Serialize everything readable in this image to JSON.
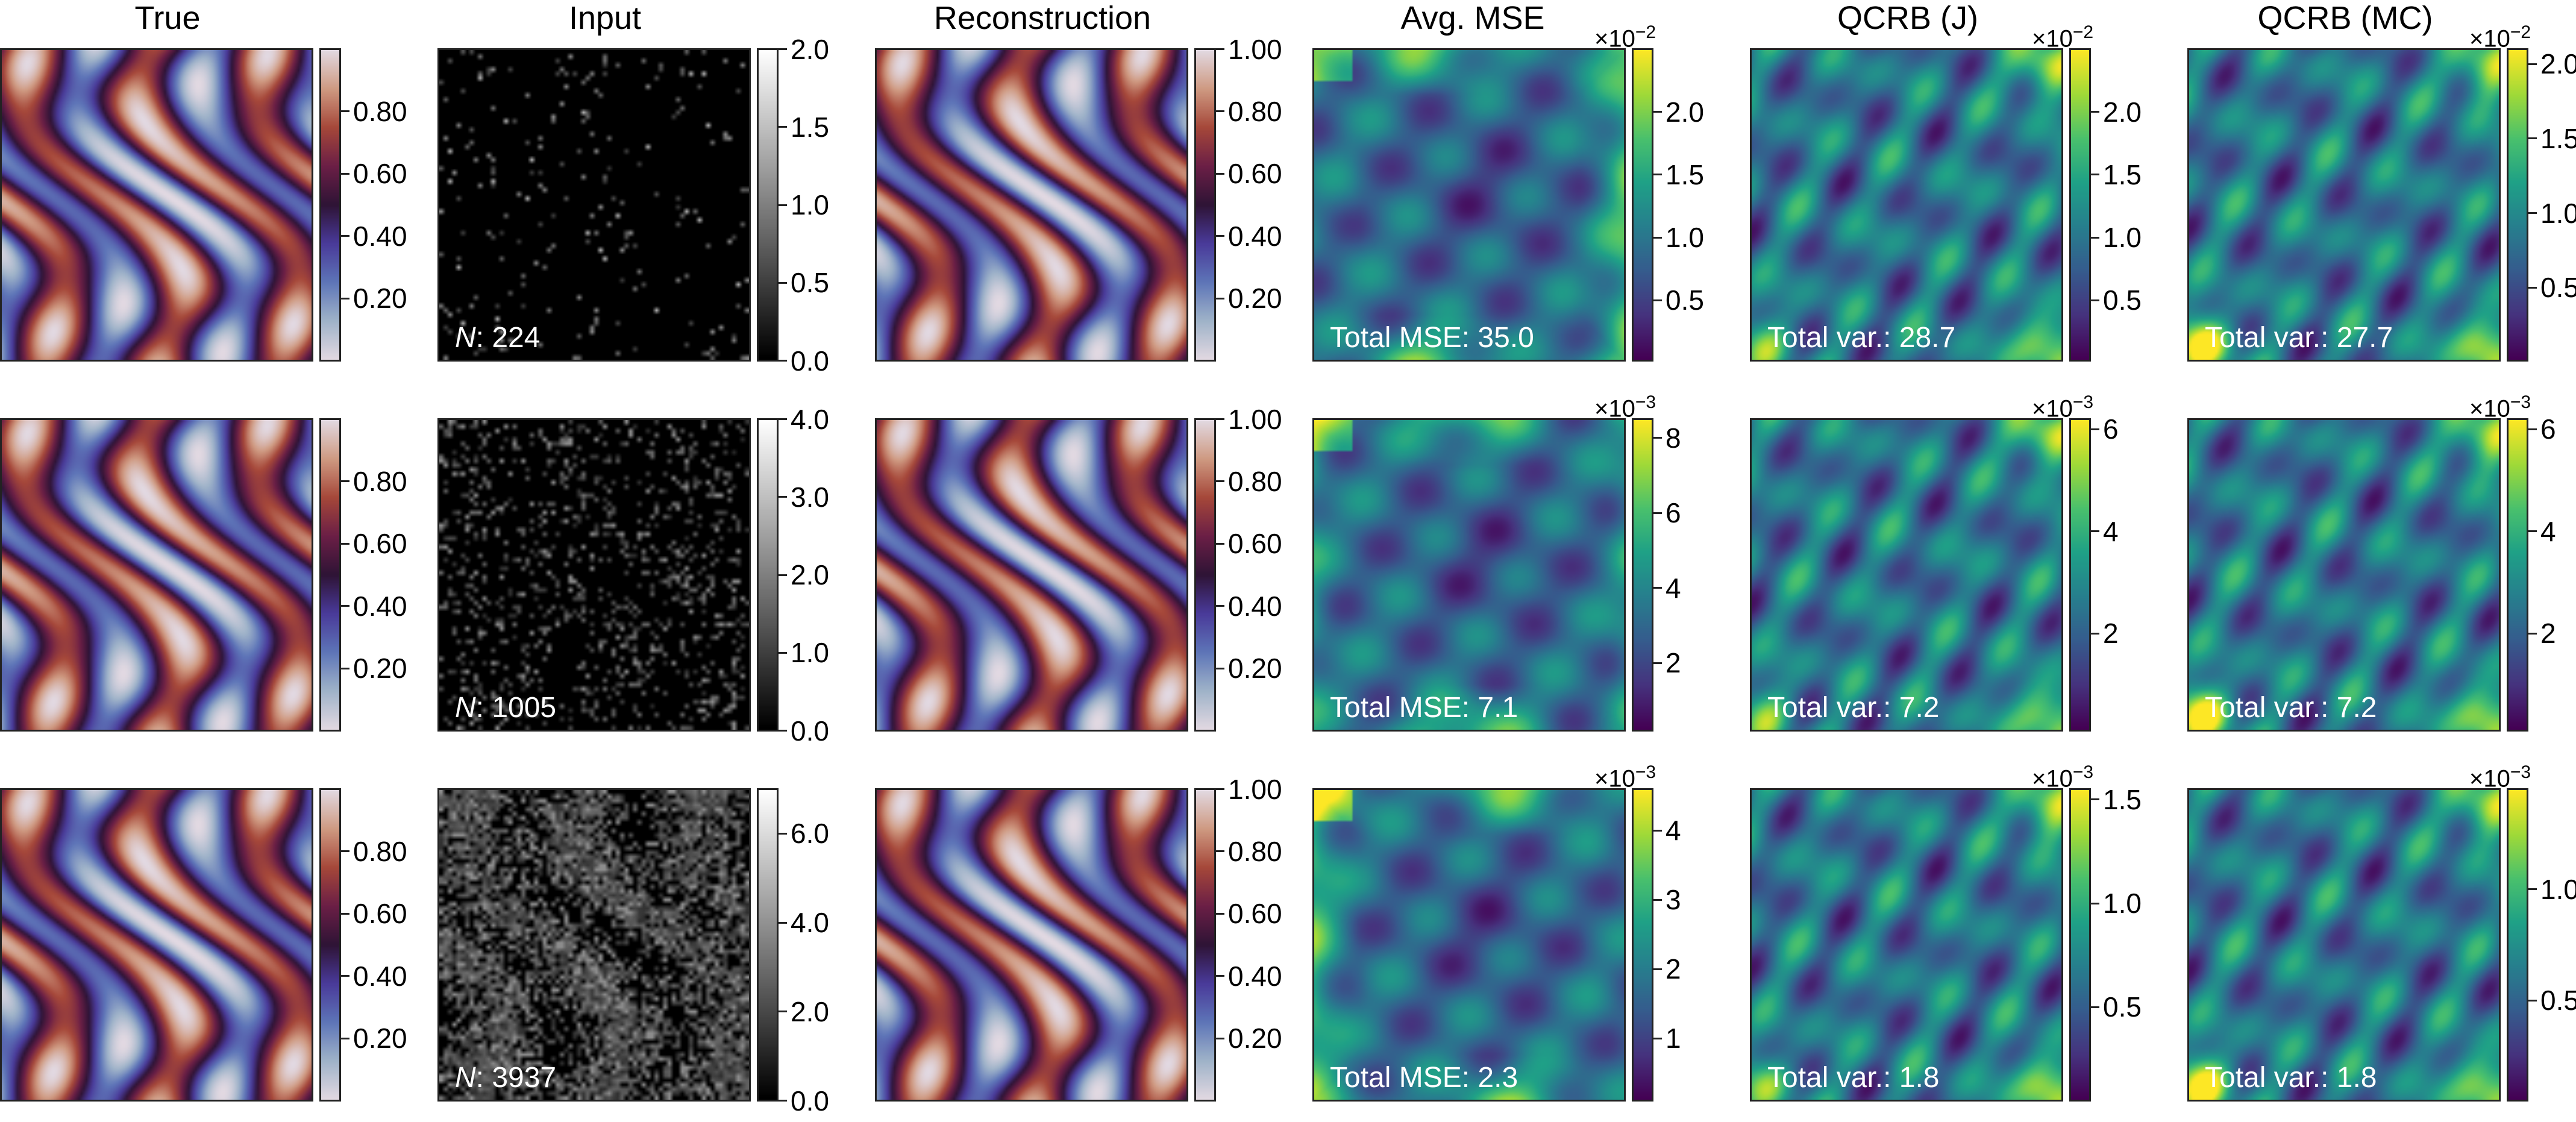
{
  "figure": {
    "columns": [
      "True",
      "Input",
      "Reconstruction",
      "Avg. MSE",
      "QCRB (J)",
      "QCRB (MC)"
    ]
  },
  "colors": {
    "twilight": [
      "#e2d9e2",
      "#9fb3c9",
      "#5e75b8",
      "#4a3b9a",
      "#2f1436",
      "#6b1f46",
      "#a6483a",
      "#cf9a82",
      "#e2d9e2"
    ],
    "gray": [
      "#000000",
      "#ffffff"
    ],
    "viridis": [
      "#440154",
      "#46337e",
      "#365c8d",
      "#277f8e",
      "#1fa187",
      "#4ac16d",
      "#a0da39",
      "#fde725"
    ]
  },
  "chart_data": [
    {
      "type": "heatmap",
      "panel": "true-r1",
      "title": "True",
      "row": 1,
      "colormap": "twilight",
      "clim": [
        0,
        1
      ],
      "ticks": [
        0.2,
        0.4,
        0.6,
        0.8
      ],
      "tick_labels": [
        "0.20",
        "0.40",
        "0.60",
        "0.80"
      ]
    },
    {
      "type": "heatmap",
      "panel": "input-r1",
      "title": "Input",
      "row": 1,
      "colormap": "gray",
      "clim": [
        0,
        2
      ],
      "ticks": [
        0,
        0.5,
        1.0,
        1.5,
        2.0
      ],
      "tick_labels": [
        "0.0",
        "0.5",
        "1.0",
        "1.5",
        "2.0"
      ],
      "annotation_prefix": "N",
      "annotation": ": 224",
      "photon_count": 224
    },
    {
      "type": "heatmap",
      "panel": "recon-r1",
      "title": "Reconstruction",
      "row": 1,
      "colormap": "twilight",
      "clim": [
        0,
        1
      ],
      "ticks": [
        0.2,
        0.4,
        0.6,
        0.8,
        1.0
      ],
      "tick_labels": [
        "0.20",
        "0.40",
        "0.60",
        "0.80",
        "1.00"
      ]
    },
    {
      "type": "heatmap",
      "panel": "mse-r1",
      "title": "Avg. MSE",
      "row": 1,
      "colormap": "viridis",
      "clim": [
        0.0002,
        0.025
      ],
      "exponent": "×10",
      "exponent_power": "−2",
      "ticks": [
        0.005,
        0.01,
        0.015,
        0.02
      ],
      "tick_labels": [
        "0.5",
        "1.0",
        "1.5",
        "2.0"
      ],
      "annotation": "Total MSE: 35.0"
    },
    {
      "type": "heatmap",
      "panel": "qcrbj-r1",
      "title": "QCRB (J)",
      "row": 1,
      "colormap": "viridis",
      "clim": [
        0.0002,
        0.025
      ],
      "exponent": "×10",
      "exponent_power": "−2",
      "ticks": [
        0.005,
        0.01,
        0.015,
        0.02
      ],
      "tick_labels": [
        "0.5",
        "1.0",
        "1.5",
        "2.0"
      ],
      "annotation": "Total var.: 28.7"
    },
    {
      "type": "heatmap",
      "panel": "qcrbmc-r1",
      "title": "QCRB (MC)",
      "row": 1,
      "colormap": "viridis",
      "clim": [
        0.0001,
        0.021
      ],
      "exponent": "×10",
      "exponent_power": "−2",
      "ticks": [
        0.005,
        0.01,
        0.015,
        0.02
      ],
      "tick_labels": [
        "0.5",
        "1.0",
        "1.5",
        "2.0"
      ],
      "annotation": "Total var.: 27.7"
    },
    {
      "type": "heatmap",
      "panel": "true-r2",
      "title": "True",
      "row": 2,
      "colormap": "twilight",
      "clim": [
        0,
        1
      ],
      "ticks": [
        0.2,
        0.4,
        0.6,
        0.8
      ],
      "tick_labels": [
        "0.20",
        "0.40",
        "0.60",
        "0.80"
      ]
    },
    {
      "type": "heatmap",
      "panel": "input-r2",
      "title": "Input",
      "row": 2,
      "colormap": "gray",
      "clim": [
        0,
        4
      ],
      "ticks": [
        0,
        1.0,
        2.0,
        3.0,
        4.0
      ],
      "tick_labels": [
        "0.0",
        "1.0",
        "2.0",
        "3.0",
        "4.0"
      ],
      "annotation_prefix": "N",
      "annotation": ": 1005",
      "photon_count": 1005
    },
    {
      "type": "heatmap",
      "panel": "recon-r2",
      "title": "Reconstruction",
      "row": 2,
      "colormap": "twilight",
      "clim": [
        0,
        1
      ],
      "ticks": [
        0.2,
        0.4,
        0.6,
        0.8,
        1.0
      ],
      "tick_labels": [
        "0.20",
        "0.40",
        "0.60",
        "0.80",
        "1.00"
      ]
    },
    {
      "type": "heatmap",
      "panel": "mse-r2",
      "title": "Avg. MSE",
      "row": 2,
      "colormap": "viridis",
      "clim": [
        0.0002,
        0.0085
      ],
      "exponent": "×10",
      "exponent_power": "−3",
      "ticks": [
        0.002,
        0.004,
        0.006,
        0.008
      ],
      "tick_labels": [
        "2",
        "4",
        "6",
        "8"
      ],
      "annotation": "Total MSE: 7.1"
    },
    {
      "type": "heatmap",
      "panel": "qcrbj-r2",
      "title": "QCRB (J)",
      "row": 2,
      "colormap": "viridis",
      "clim": [
        0.0001,
        0.0062
      ],
      "exponent": "×10",
      "exponent_power": "−3",
      "ticks": [
        0.002,
        0.004,
        0.006
      ],
      "tick_labels": [
        "2",
        "4",
        "6"
      ],
      "annotation": "Total var.: 7.2"
    },
    {
      "type": "heatmap",
      "panel": "qcrbmc-r2",
      "title": "QCRB (MC)",
      "row": 2,
      "colormap": "viridis",
      "clim": [
        0.0001,
        0.0062
      ],
      "exponent": "×10",
      "exponent_power": "−3",
      "ticks": [
        0.002,
        0.004,
        0.006
      ],
      "tick_labels": [
        "2",
        "4",
        "6"
      ],
      "annotation": "Total var.: 7.2"
    },
    {
      "type": "heatmap",
      "panel": "true-r3",
      "title": "True",
      "row": 3,
      "colormap": "twilight",
      "clim": [
        0,
        1
      ],
      "ticks": [
        0.2,
        0.4,
        0.6,
        0.8
      ],
      "tick_labels": [
        "0.20",
        "0.40",
        "0.60",
        "0.80"
      ]
    },
    {
      "type": "heatmap",
      "panel": "input-r3",
      "title": "Input",
      "row": 3,
      "colormap": "gray",
      "clim": [
        0,
        7
      ],
      "ticks": [
        0,
        2.0,
        4.0,
        6.0
      ],
      "tick_labels": [
        "0.0",
        "2.0",
        "4.0",
        "6.0"
      ],
      "annotation_prefix": "N",
      "annotation": ": 3937",
      "photon_count": 3937
    },
    {
      "type": "heatmap",
      "panel": "recon-r3",
      "title": "Reconstruction",
      "row": 3,
      "colormap": "twilight",
      "clim": [
        0,
        1
      ],
      "ticks": [
        0.2,
        0.4,
        0.6,
        0.8,
        1.0
      ],
      "tick_labels": [
        "0.20",
        "0.40",
        "0.60",
        "0.80",
        "1.00"
      ]
    },
    {
      "type": "heatmap",
      "panel": "mse-r3",
      "title": "Avg. MSE",
      "row": 3,
      "colormap": "viridis",
      "clim": [
        0.0001,
        0.0046
      ],
      "exponent": "×10",
      "exponent_power": "−3",
      "ticks": [
        0.001,
        0.002,
        0.003,
        0.004
      ],
      "tick_labels": [
        "1",
        "2",
        "3",
        "4"
      ],
      "annotation": "Total MSE: 2.3"
    },
    {
      "type": "heatmap",
      "panel": "qcrbj-r3",
      "title": "QCRB (J)",
      "row": 3,
      "colormap": "viridis",
      "clim": [
        5e-05,
        0.00155
      ],
      "exponent": "×10",
      "exponent_power": "−3",
      "ticks": [
        0.0005,
        0.001,
        0.0015
      ],
      "tick_labels": [
        "0.5",
        "1.0",
        "1.5"
      ],
      "annotation": "Total var.: 1.8"
    },
    {
      "type": "heatmap",
      "panel": "qcrbmc-r3",
      "title": "QCRB (MC)",
      "row": 3,
      "colormap": "viridis",
      "clim": [
        5e-05,
        0.00145
      ],
      "exponent": "×10",
      "exponent_power": "−3",
      "ticks": [
        0.0005,
        0.001
      ],
      "tick_labels": [
        "0.5",
        "1.0"
      ],
      "annotation": "Total var.: 1.8"
    }
  ]
}
